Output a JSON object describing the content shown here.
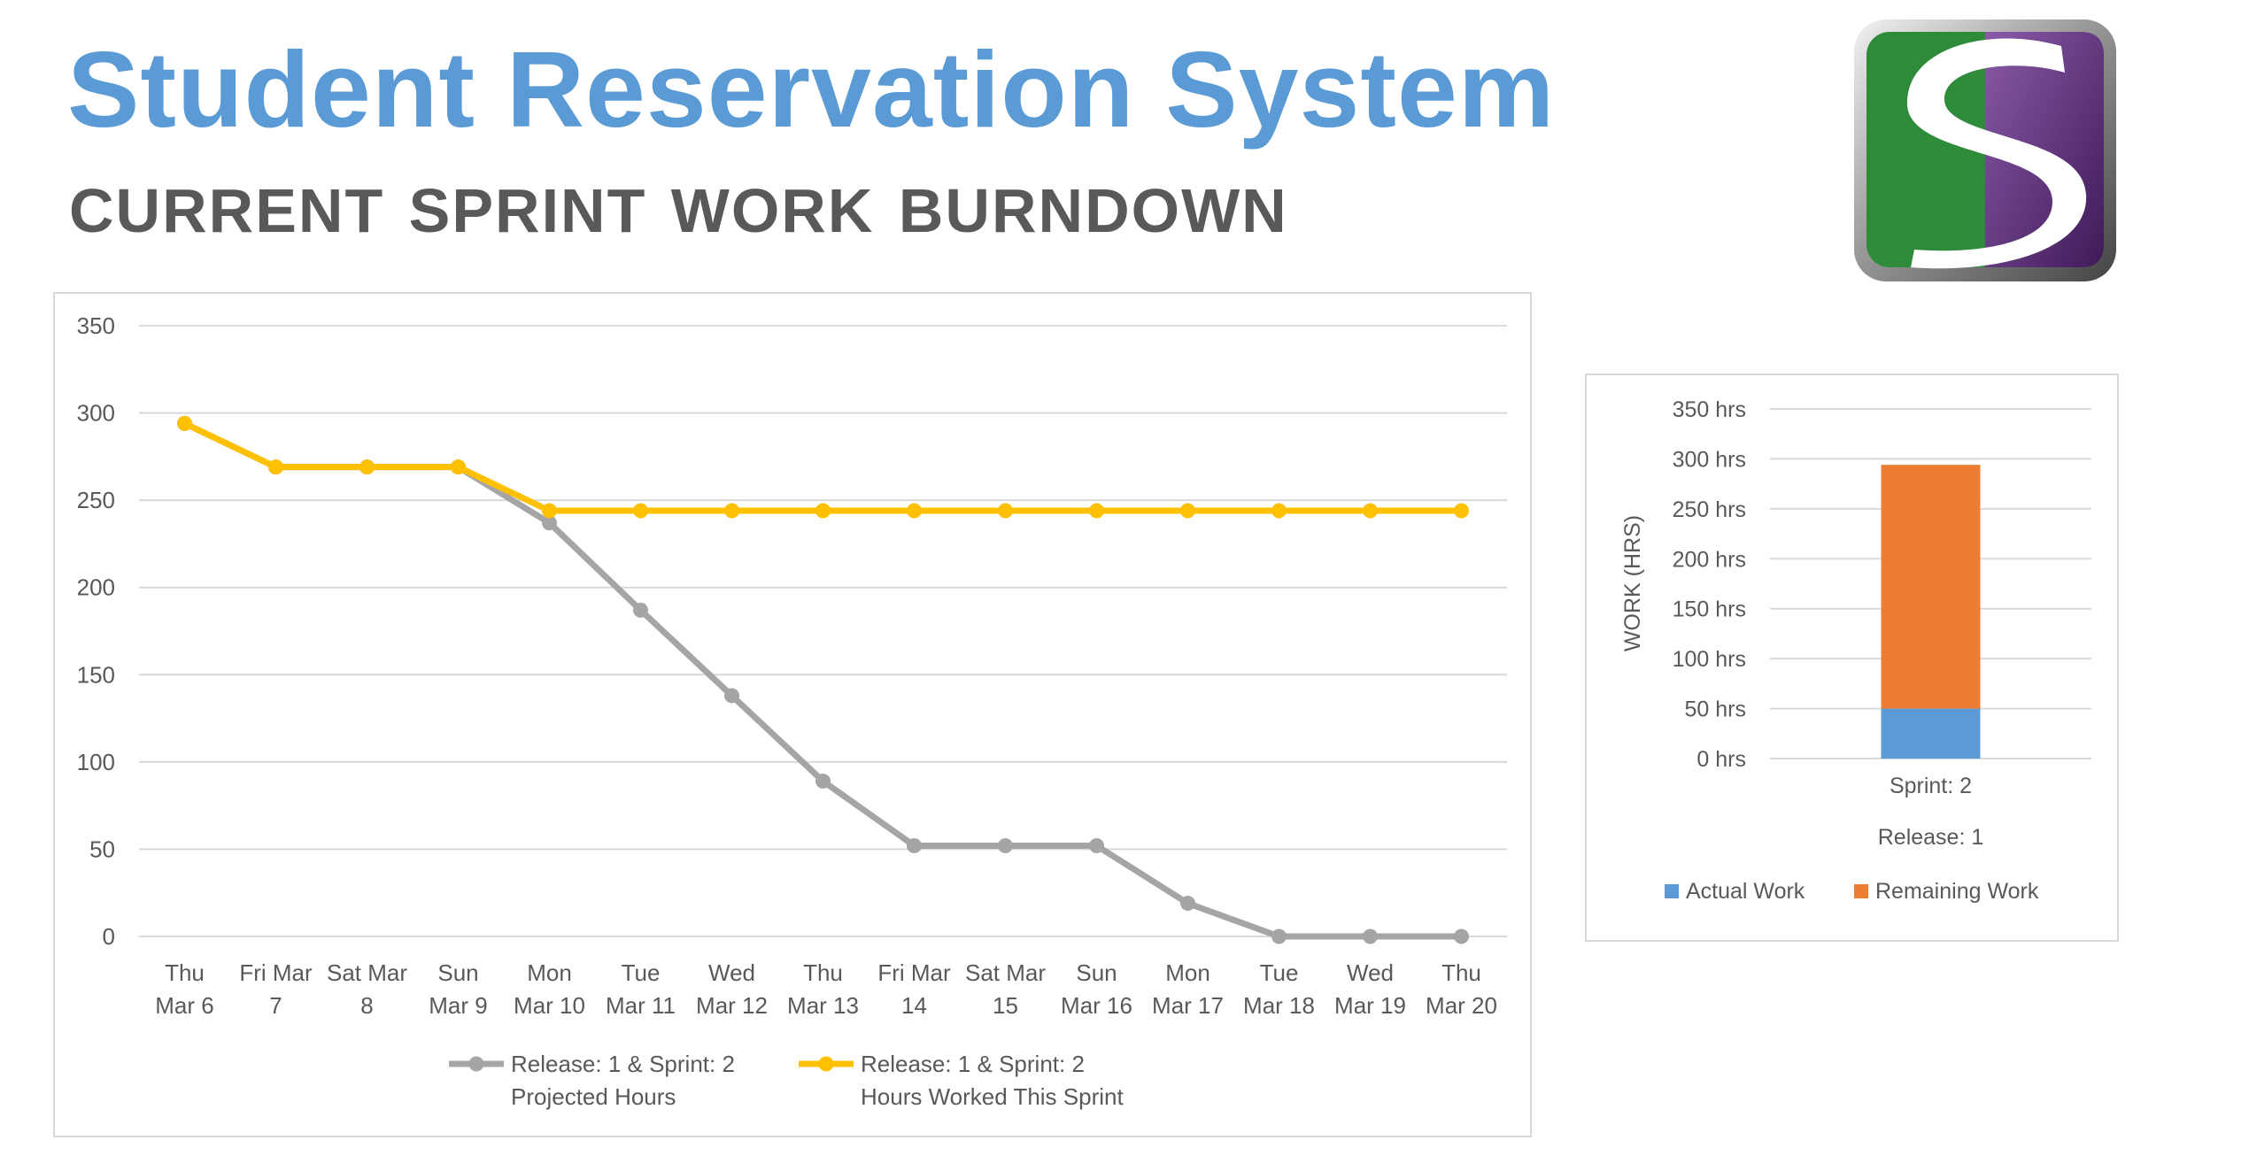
{
  "header": {
    "title": "Student Reservation System",
    "subtitle": "CURRENT SPRINT WORK BURNDOWN",
    "logo_letter": "S"
  },
  "colors": {
    "title": "#5b9bd5",
    "subtitle": "#595959",
    "projected": "#a5a5a5",
    "worked": "#ffc000",
    "actual": "#5b9bd5",
    "remaining": "#ed7d31",
    "logo_green": "#2e8b3a",
    "logo_purple": "#5b2a7a"
  },
  "chart_data": [
    {
      "type": "line",
      "ylim": [
        0,
        350
      ],
      "yticks": [
        "0",
        "50",
        "100",
        "150",
        "200",
        "250",
        "300",
        "350"
      ],
      "categories": [
        [
          "Thu",
          "Mar 6"
        ],
        [
          "Fri Mar",
          "7"
        ],
        [
          "Sat Mar",
          "8"
        ],
        [
          "Sun",
          "Mar 9"
        ],
        [
          "Mon",
          "Mar 10"
        ],
        [
          "Tue",
          "Mar 11"
        ],
        [
          "Wed",
          "Mar 12"
        ],
        [
          "Thu",
          "Mar 13"
        ],
        [
          "Fri Mar",
          "14"
        ],
        [
          "Sat Mar",
          "15"
        ],
        [
          "Sun",
          "Mar 16"
        ],
        [
          "Mon",
          "Mar 17"
        ],
        [
          "Tue",
          "Mar 18"
        ],
        [
          "Wed",
          "Mar 19"
        ],
        [
          "Thu",
          "Mar 20"
        ]
      ],
      "grid": true,
      "legend": "bottom",
      "series": [
        {
          "name": [
            "Release: 1 & Sprint: 2",
            "Projected Hours"
          ],
          "color": "#a5a5a5",
          "values": [
            294,
            269,
            269,
            269,
            237,
            187,
            138,
            89,
            52,
            52,
            52,
            19,
            0,
            0,
            0
          ]
        },
        {
          "name": [
            "Release: 1 & Sprint: 2",
            "Hours Worked This Sprint"
          ],
          "color": "#ffc000",
          "values": [
            294,
            269,
            269,
            269,
            244,
            244,
            244,
            244,
            244,
            244,
            244,
            244,
            244,
            244,
            244
          ]
        }
      ]
    },
    {
      "type": "bar",
      "stacked": true,
      "ylabel": "WORK (HRS)",
      "ylim": [
        0,
        350
      ],
      "yticks": [
        "0 hrs",
        "50 hrs",
        "100 hrs",
        "150 hrs",
        "200 hrs",
        "250 hrs",
        "300 hrs",
        "350 hrs"
      ],
      "categories": [
        [
          "Sprint: 2",
          "Release: 1"
        ]
      ],
      "grid": true,
      "legend": "bottom",
      "series": [
        {
          "name": "Actual Work",
          "color": "#5b9bd5",
          "values": [
            50
          ]
        },
        {
          "name": "Remaining Work",
          "color": "#ed7d31",
          "values": [
            244
          ]
        }
      ]
    }
  ]
}
